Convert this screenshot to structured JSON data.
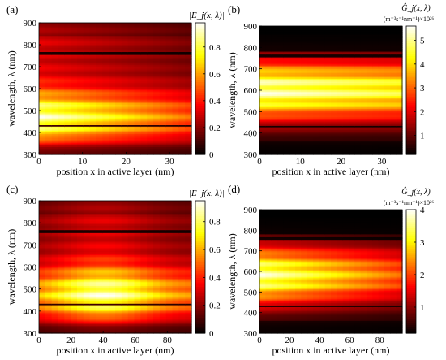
{
  "figure": {
    "background": "#ffffff"
  },
  "chart_data": [
    {
      "panel_label": "(a)",
      "type": "heatmap",
      "xlabel": "position x in active layer (nm)",
      "ylabel": "wavelength, λ (nm)",
      "xlim": [
        0,
        35
      ],
      "ylim": [
        300,
        900
      ],
      "xticks": [
        0,
        10,
        20,
        30
      ],
      "yticks": [
        300,
        400,
        500,
        600,
        700,
        800,
        900
      ],
      "colorbar": {
        "label": "|E_j(x, λ)|",
        "min": 0,
        "max": 0.98,
        "ticks": [
          0,
          0.2,
          0.4,
          0.6,
          0.8
        ],
        "tick_labels": [
          "0",
          "0.2",
          "0.4",
          "0.6",
          "0.8"
        ]
      },
      "field_peak_wavelength": 470,
      "field_peak_value": 0.95,
      "dark_lines_wavelength": [
        430,
        760
      ],
      "trend_along_x": "decreasing"
    },
    {
      "panel_label": "(b)",
      "type": "heatmap",
      "xlabel": "position x in active layer (nm)",
      "ylabel": "wavelength, λ (nm)",
      "xlim": [
        0,
        35
      ],
      "ylim": [
        300,
        900
      ],
      "xticks": [
        0,
        10,
        20,
        30
      ],
      "yticks": [
        300,
        400,
        500,
        600,
        700,
        800,
        900
      ],
      "colorbar": {
        "label": "Ĝ_j(x, λ)",
        "unit": "(m⁻³s⁻¹nm⁻¹)×10²⁶",
        "min": 0.2,
        "max": 5.6,
        "ticks": [
          1,
          2,
          3,
          4,
          5
        ],
        "tick_labels": [
          "1",
          "2",
          "3",
          "4",
          "5"
        ]
      },
      "field_peak_wavelength": 600,
      "field_peak_value": 5.2,
      "dark_lines_wavelength": [
        430,
        760
      ],
      "trend_along_x": "flat"
    },
    {
      "panel_label": "(c)",
      "type": "heatmap",
      "xlabel": "position x in active layer (nm)",
      "ylabel": "wavelength, λ (nm)",
      "xlim": [
        0,
        95
      ],
      "ylim": [
        300,
        900
      ],
      "xticks": [
        0,
        20,
        40,
        60,
        80
      ],
      "yticks": [
        300,
        400,
        500,
        600,
        700,
        800,
        900
      ],
      "colorbar": {
        "label": "|E_j(x, λ)|",
        "min": 0,
        "max": 0.95,
        "ticks": [
          0,
          0.2,
          0.4,
          0.6,
          0.8
        ],
        "tick_labels": [
          "0",
          "0.2",
          "0.4",
          "0.6",
          "0.8"
        ]
      },
      "field_peak_wavelength": 480,
      "field_peak_value": 0.92,
      "field_peak_x": 40,
      "dark_lines_wavelength": [
        430,
        760
      ],
      "trend_along_x": "hump"
    },
    {
      "panel_label": "(d)",
      "type": "heatmap",
      "xlabel": "position x in active layer (nm)",
      "ylabel": "wavelength, λ (nm)",
      "xlim": [
        0,
        95
      ],
      "ylim": [
        300,
        900
      ],
      "xticks": [
        0,
        20,
        40,
        60,
        80
      ],
      "yticks": [
        300,
        400,
        500,
        600,
        700,
        800,
        900
      ],
      "colorbar": {
        "label": "Ĝ_j(x, λ)",
        "unit": "(m⁻³s⁻¹nm⁻¹)×10²⁶",
        "min": 0.2,
        "max": 4.0,
        "ticks": [
          1,
          2,
          3,
          4
        ],
        "tick_labels": [
          "1",
          "2",
          "3",
          "4"
        ]
      },
      "field_peak_wavelength": 580,
      "field_peak_value": 3.8,
      "dark_lines_wavelength": [
        430,
        760
      ],
      "trend_along_x": "decreasing"
    }
  ]
}
